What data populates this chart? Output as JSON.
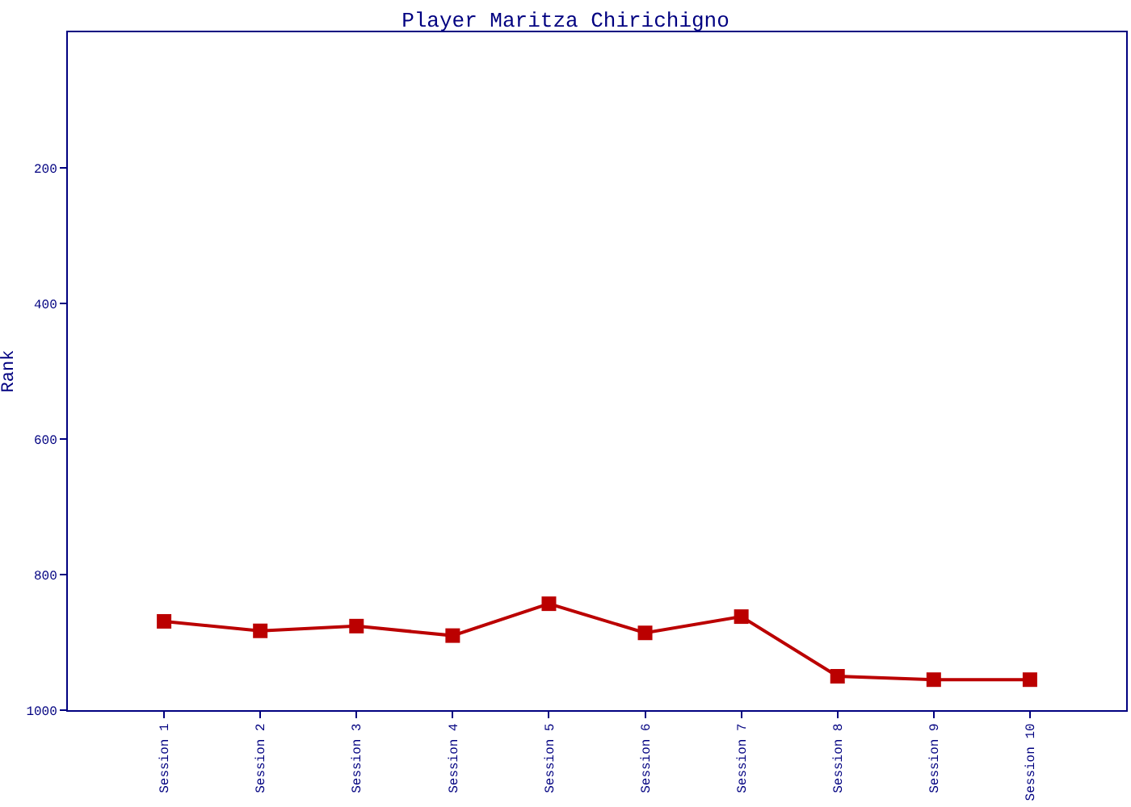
{
  "chart_data": {
    "type": "line",
    "title": "Player Maritza Chirichigno",
    "ylabel": "Rank",
    "categories": [
      "Session 1",
      "Session 2",
      "Session 3",
      "Session 4",
      "Session 5",
      "Session 6",
      "Session 7",
      "Session 8",
      "Session 9",
      "Session 10"
    ],
    "series": [
      {
        "color": "#bb0000",
        "values": [
          869,
          883,
          876,
          890,
          843,
          886,
          862,
          950,
          955,
          955
        ]
      }
    ],
    "ylim": [
      1000,
      0
    ],
    "yticks": [
      200,
      400,
      600,
      800,
      1000
    ],
    "grid": false,
    "marker": "square",
    "line_style": "solid"
  }
}
